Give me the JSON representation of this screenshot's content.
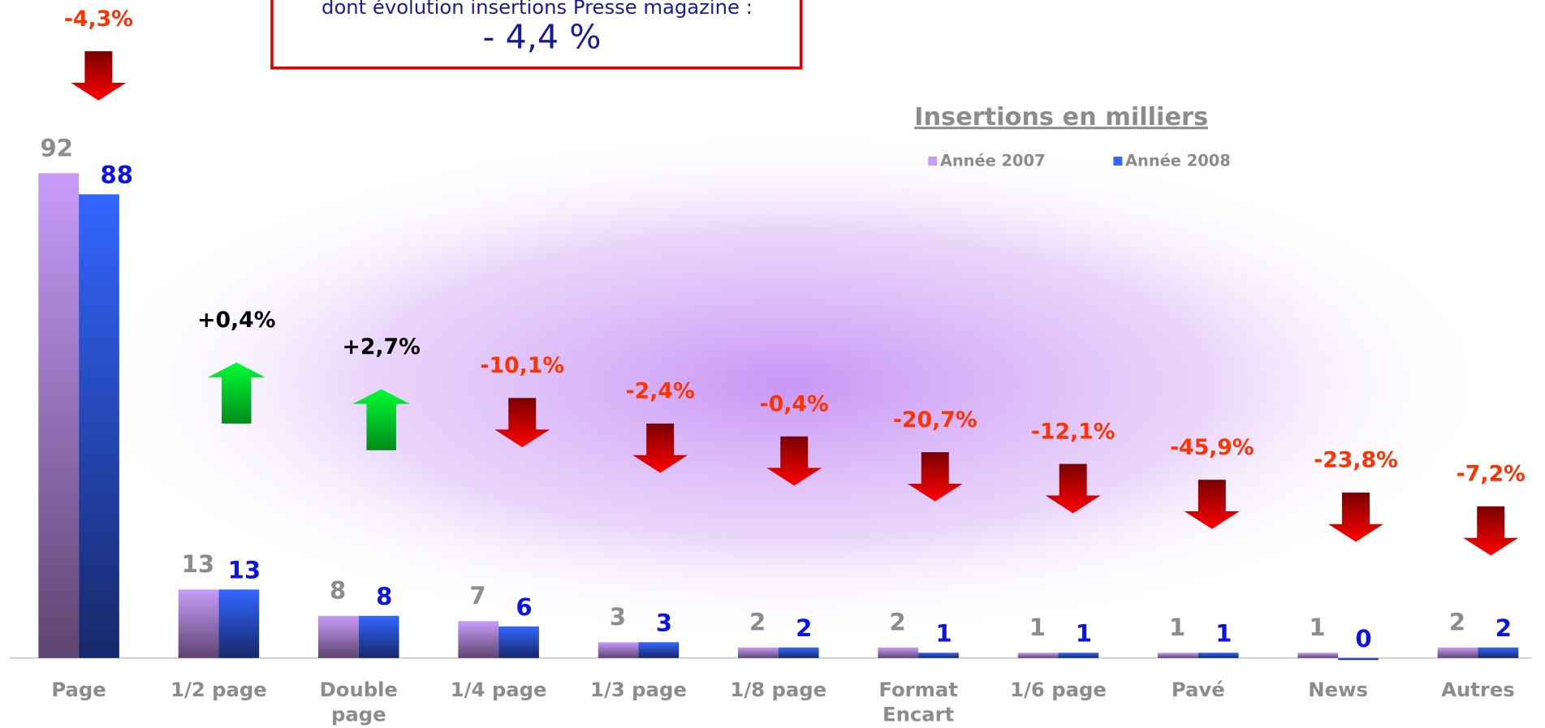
{
  "summary": {
    "text": "dont évolution insertions Presse magazine :",
    "value": "- 4,4 %"
  },
  "chart_data": {
    "type": "bar",
    "title": "Insertions en milliers",
    "categories": [
      "Page",
      "1/2 page",
      "Double page",
      "1/4 page",
      "1/3 page",
      "1/8 page",
      "Format Encart",
      "1/6 page",
      "Pavé",
      "News",
      "Autres"
    ],
    "series": [
      {
        "name": "Année 2007",
        "color": "#c89bfa",
        "values": [
          92,
          13,
          8,
          7,
          3,
          2,
          2,
          1,
          1,
          1,
          2
        ]
      },
      {
        "name": "Année 2008",
        "color": "#3366ff",
        "values": [
          88,
          13,
          8,
          6,
          3,
          2,
          1,
          1,
          1,
          0,
          2
        ]
      }
    ],
    "changes": [
      -4.3,
      0.4,
      2.7,
      -10.1,
      -2.4,
      -0.4,
      -20.7,
      -12.1,
      -45.9,
      -23.8,
      -7.2
    ],
    "change_labels": [
      "-4,3%",
      "+0,4%",
      "+2,7%",
      "-10,1%",
      "-2,4%",
      "-0,4%",
      "-20,7%",
      "-12,1%",
      "-45,9%",
      "-23,8%",
      "-7,2%"
    ],
    "ylim": [
      0,
      100
    ]
  }
}
